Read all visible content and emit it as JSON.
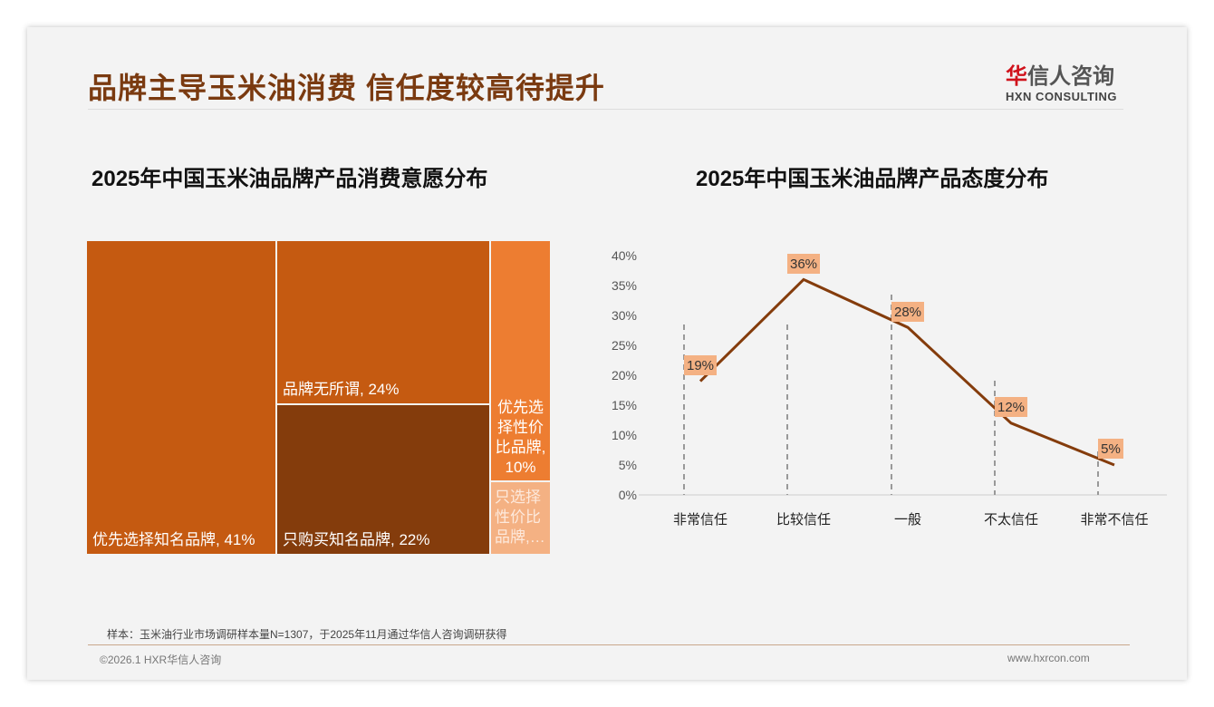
{
  "header": {
    "title": "品牌主导玉米油消费 信任度较高待提升",
    "logo_cn_first": "华",
    "logo_cn_rest": "信人咨询",
    "logo_en": "HXN CONSULTING"
  },
  "chart_data": [
    {
      "type": "treemap",
      "title": "2025年中国玉米油品牌产品消费意愿分布",
      "items": [
        {
          "label": "优先选择知名品牌, 41%",
          "name": "优先选择知名品牌",
          "value": 41,
          "color": "#c55a11"
        },
        {
          "label": "品牌无所谓, 24%",
          "name": "品牌无所谓",
          "value": 24,
          "color": "#c55a11"
        },
        {
          "label": "只购买知名品牌, 22%",
          "name": "只购买知名品牌",
          "value": 22,
          "color": "#843c0c"
        },
        {
          "label": "优先选择性价比品牌, 10%",
          "name": "优先选择性价比品牌",
          "value": 10,
          "color": "#ed7d31"
        },
        {
          "label": "只选择性价比品牌,…",
          "name": "只选择性价比品牌",
          "value": 3,
          "color": "#f4b183"
        }
      ]
    },
    {
      "type": "line",
      "title": "2025年中国玉米油品牌产品态度分布",
      "categories": [
        "非常信任",
        "比较信任",
        "一般",
        "不太信任",
        "非常不信任"
      ],
      "values": [
        19,
        36,
        28,
        12,
        5
      ],
      "data_labels": [
        "19%",
        "36%",
        "28%",
        "12%",
        "5%"
      ],
      "yticks": [
        "0%",
        "5%",
        "10%",
        "15%",
        "20%",
        "25%",
        "30%",
        "35%",
        "40%"
      ],
      "ylim": [
        0,
        40
      ],
      "line_color": "#843c0c",
      "label_bg": "#f4b183"
    }
  ],
  "footer": {
    "note": "样本：玉米油行业市场调研样本量N=1307，于2025年11月通过华信人咨询调研获得",
    "copyright": "©2026.1 HXR华信人咨询",
    "url": "www.hxrcon.com"
  }
}
